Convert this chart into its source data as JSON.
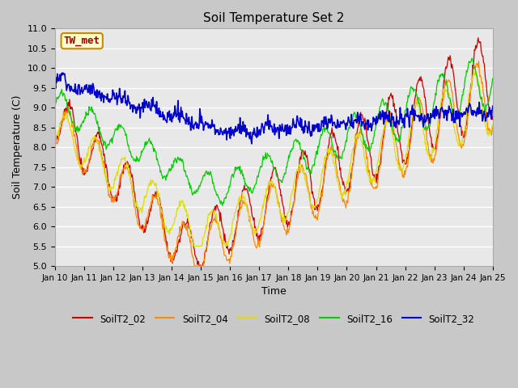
{
  "title": "Soil Temperature Set 2",
  "xlabel": "Time",
  "ylabel": "Soil Temperature (C)",
  "ylim": [
    5.0,
    11.0
  ],
  "yticks": [
    5.0,
    5.5,
    6.0,
    6.5,
    7.0,
    7.5,
    8.0,
    8.5,
    9.0,
    9.5,
    10.0,
    10.5,
    11.0
  ],
  "xtick_labels": [
    "Jan 10",
    "Jan 11",
    "Jan 12",
    "Jan 13",
    "Jan 14",
    "Jan 15",
    "Jan 16",
    "Jan 17",
    "Jan 18",
    "Jan 19",
    "Jan 20",
    "Jan 21",
    "Jan 22",
    "Jan 23",
    "Jan 24",
    "Jan 25"
  ],
  "colors": {
    "SoilT2_02": "#cc0000",
    "SoilT2_04": "#ff8800",
    "SoilT2_08": "#dddd00",
    "SoilT2_16": "#00cc00",
    "SoilT2_32": "#0000cc"
  },
  "plot_bg_color": "#e8e8e8",
  "fig_bg_color": "#c8c8c8",
  "grid_color": "#ffffff",
  "annotation_text": "TW_met",
  "figsize": [
    6.4,
    4.8
  ],
  "dpi": 100
}
